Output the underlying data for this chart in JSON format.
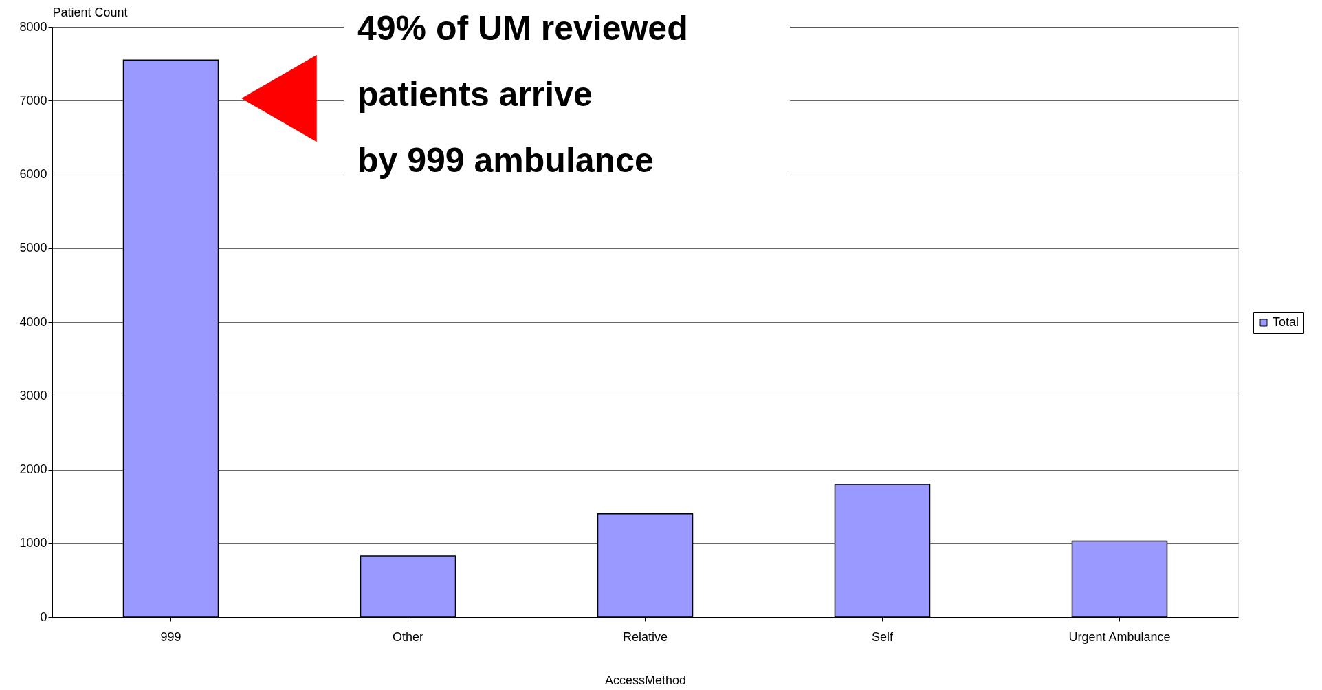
{
  "chart_data": {
    "type": "bar",
    "xlabel": "AccessMethod",
    "ylabel": "Patient Count",
    "categories": [
      "999",
      "Other",
      "Relative",
      "Self",
      "Urgent Ambulance"
    ],
    "series": [
      {
        "name": "Total",
        "color": "#9999ff",
        "values": [
          7550,
          830,
          1400,
          1800,
          1030
        ]
      }
    ],
    "ylim": [
      0,
      8000
    ],
    "yticks": [
      0,
      1000,
      2000,
      3000,
      4000,
      5000,
      6000,
      7000,
      8000
    ],
    "grid": "y",
    "legend": "right",
    "annotations": [
      "49% of UM reviewed patients arrive by 999 ambulance"
    ]
  }
}
